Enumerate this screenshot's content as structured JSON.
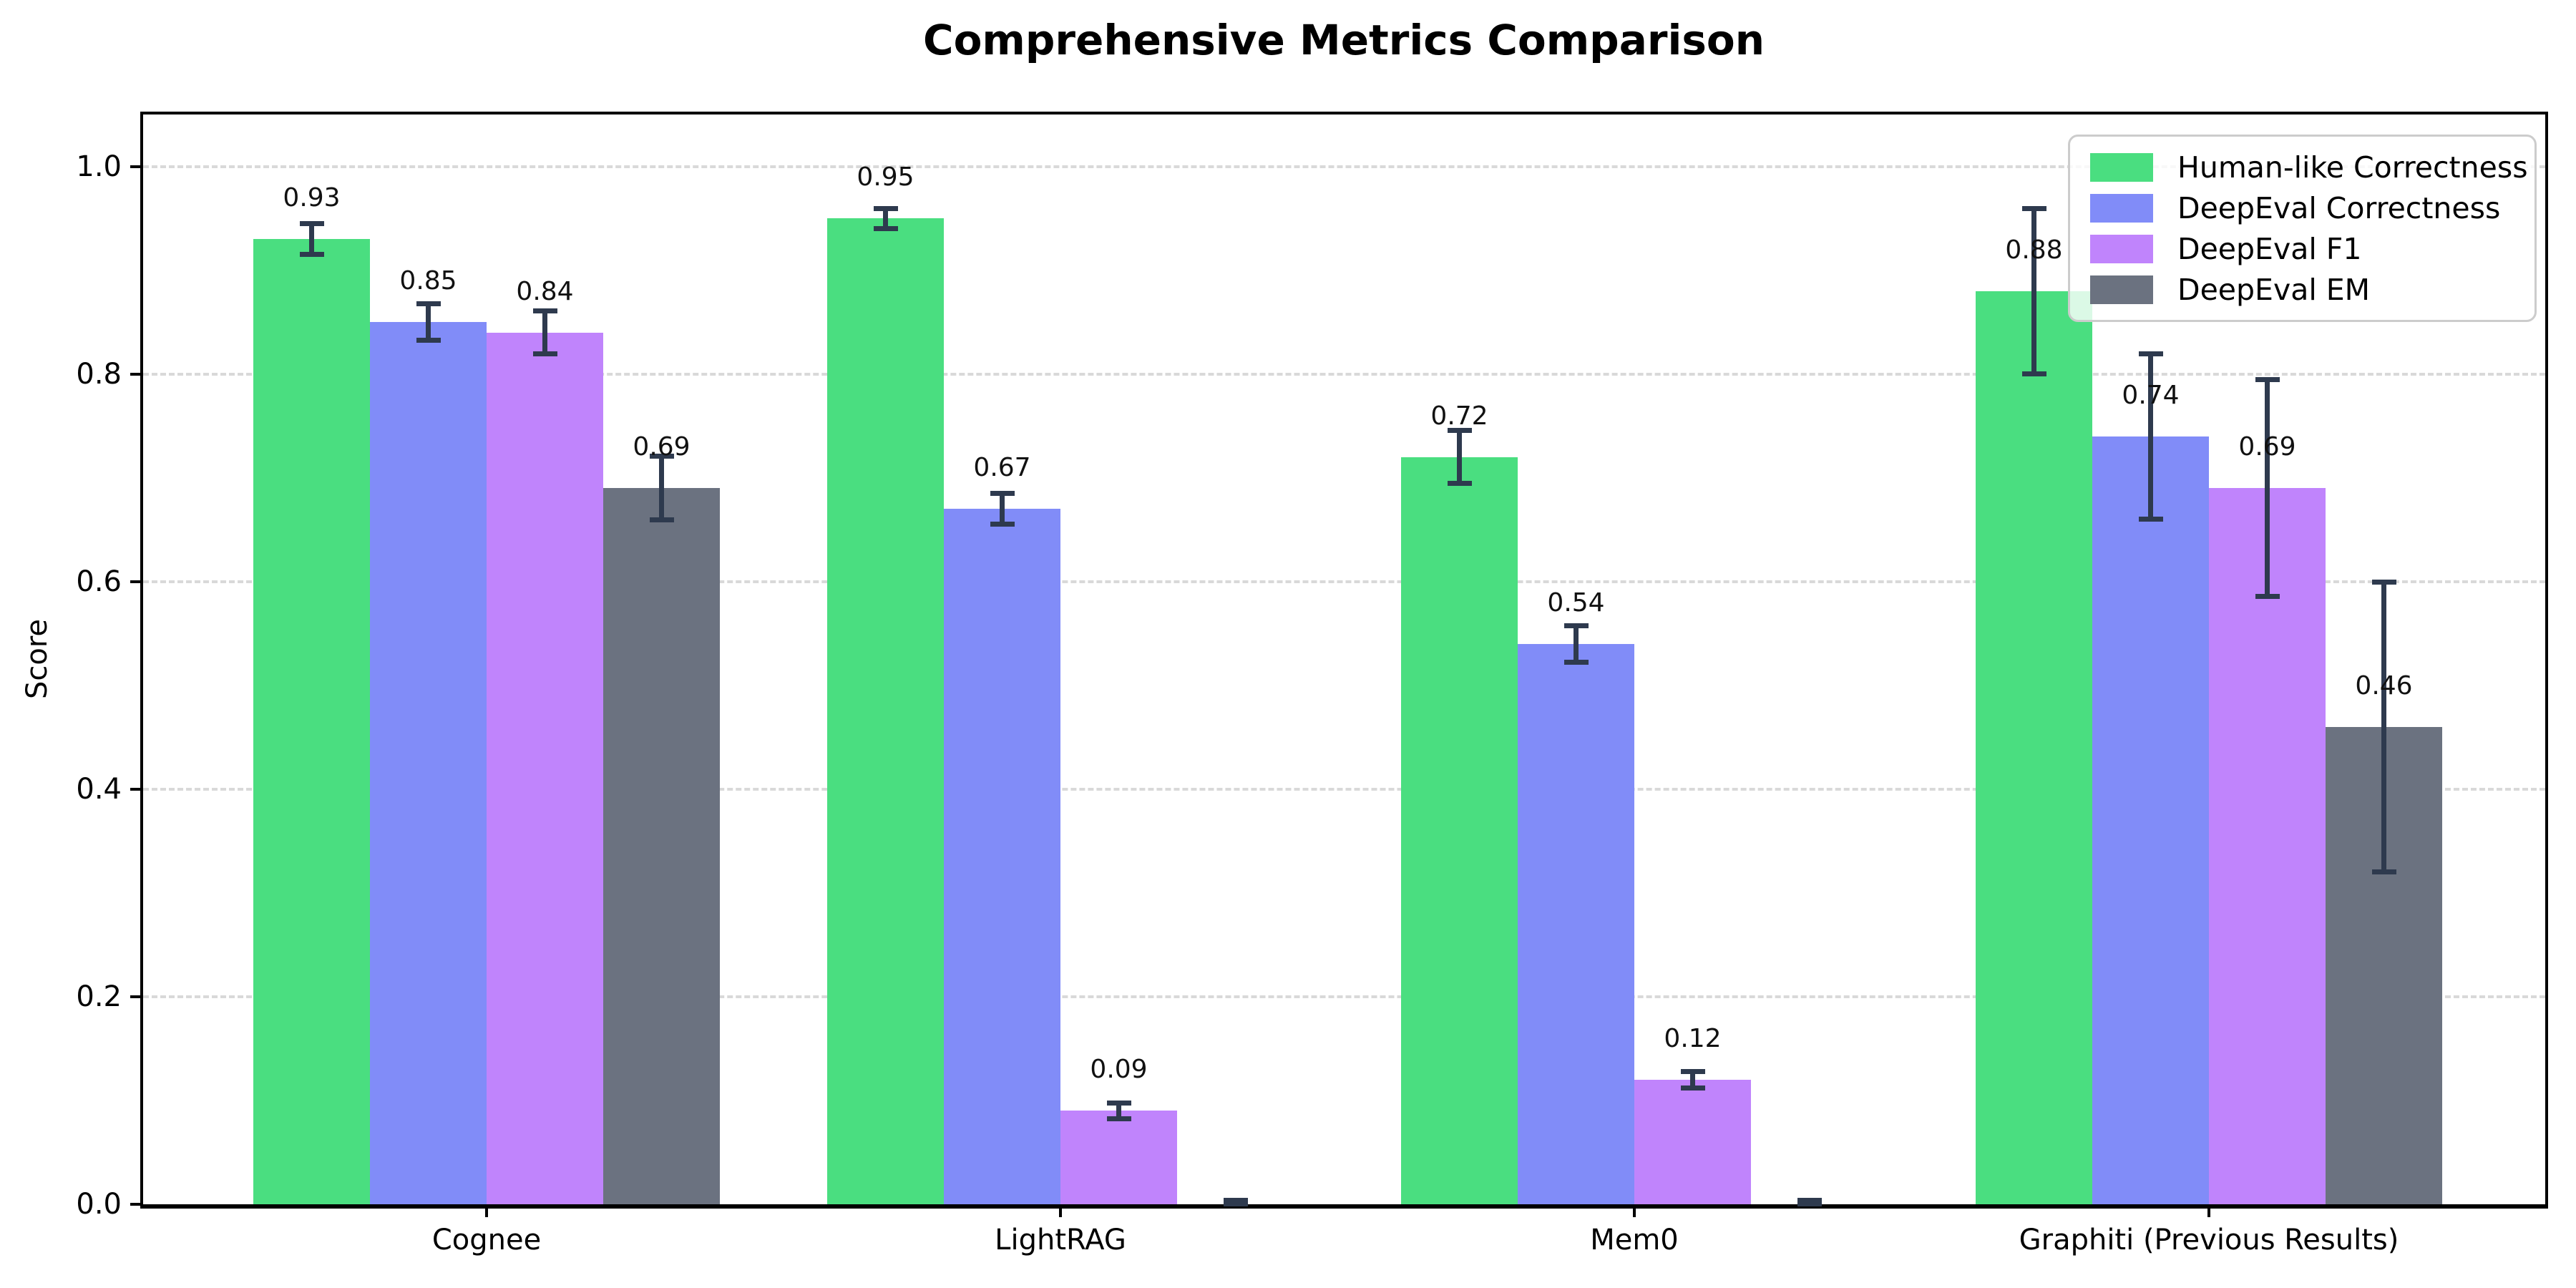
{
  "title": "Comprehensive Metrics Comparison",
  "y_axis_title": "Score",
  "chart_data": {
    "type": "bar",
    "title": "Comprehensive Metrics Comparison",
    "xlabel": "",
    "ylabel": "Score",
    "categories": [
      "Cognee",
      "LightRAG",
      "Mem0",
      "Graphiti (Previous Results)"
    ],
    "series": [
      {
        "name": "Human-like Correctness",
        "color": "#4ade80",
        "values": [
          0.93,
          0.95,
          0.72,
          0.88
        ],
        "errors": [
          0.015,
          0.01,
          0.026,
          0.08
        ],
        "labels": [
          "0.93",
          "0.95",
          "0.72",
          "0.88"
        ]
      },
      {
        "name": "DeepEval Correctness",
        "color": "#818cf8",
        "values": [
          0.85,
          0.67,
          0.54,
          0.74
        ],
        "errors": [
          0.018,
          0.015,
          0.018,
          0.08
        ],
        "labels": [
          "0.85",
          "0.67",
          "0.54",
          "0.74"
        ]
      },
      {
        "name": "DeepEval F1",
        "color": "#c084fc",
        "values": [
          0.84,
          0.09,
          0.12,
          0.69
        ],
        "errors": [
          0.021,
          0.008,
          0.008,
          0.105
        ],
        "labels": [
          "0.84",
          "0.09",
          "0.12",
          "0.69"
        ]
      },
      {
        "name": "DeepEval EM",
        "color": "#6b7280",
        "values": [
          0.69,
          0.0,
          0.0,
          0.46
        ],
        "errors": [
          0.031,
          0.004,
          0.004,
          0.14
        ],
        "labels": [
          "0.69",
          null,
          null,
          "0.46"
        ]
      }
    ],
    "yticks": [
      {
        "value": 0.0,
        "label": "0.0"
      },
      {
        "value": 0.2,
        "label": "0.2"
      },
      {
        "value": 0.4,
        "label": "0.4"
      },
      {
        "value": 0.6,
        "label": "0.6"
      },
      {
        "value": 0.8,
        "label": "0.8"
      },
      {
        "value": 1.0,
        "label": "1.0"
      }
    ],
    "ylim": [
      0,
      1.05
    ],
    "grid": "horizontal-dashed",
    "legend_position": "upper-right",
    "colors": {
      "error_bar": "#2e3a4e",
      "grid": "#d9d9d9",
      "axis": "#000000",
      "background": "#ffffff"
    }
  }
}
